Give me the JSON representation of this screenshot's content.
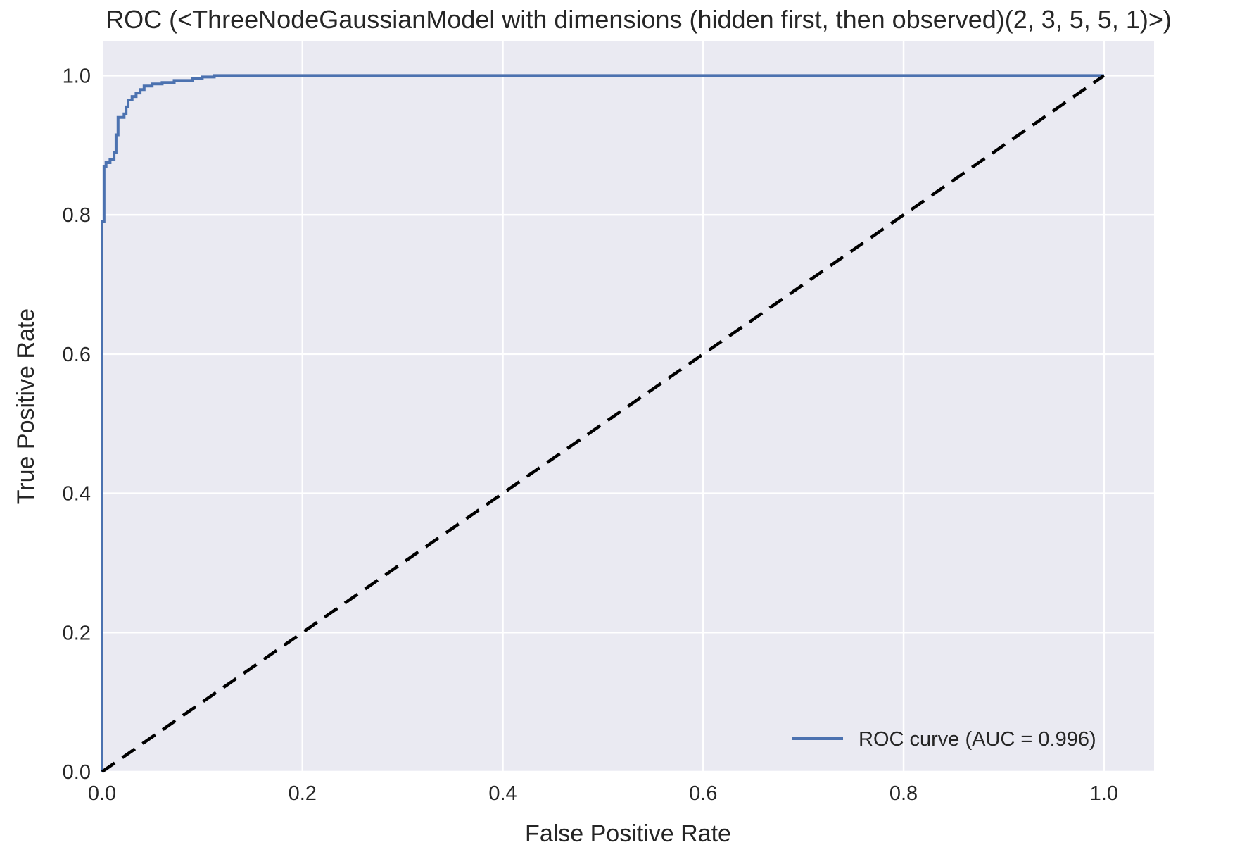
{
  "chart_data": {
    "type": "line",
    "title": "ROC (<ThreeNodeGaussianModel with dimensions (hidden first, then observed)(2, 3, 5, 5, 1)>)",
    "xlabel": "False Positive Rate",
    "ylabel": "True Positive Rate",
    "xlim": [
      0.0,
      1.05
    ],
    "ylim": [
      0.0,
      1.05
    ],
    "xticks": [
      0.0,
      0.2,
      0.4,
      0.6,
      0.8,
      1.0
    ],
    "xtick_labels": [
      "0.0",
      "0.2",
      "0.4",
      "0.6",
      "0.8",
      "1.0"
    ],
    "yticks": [
      0.0,
      0.2,
      0.4,
      0.6,
      0.8,
      1.0
    ],
    "ytick_labels": [
      "0.0",
      "0.2",
      "0.4",
      "0.6",
      "0.8",
      "1.0"
    ],
    "grid": true,
    "legend_position": "lower-right",
    "colors": {
      "background": "#EAEAF2",
      "grid": "#FFFFFF",
      "roc": "#4C72B0",
      "chance": "#000000"
    },
    "series": [
      {
        "name": "ROC curve (AUC = 0.996)",
        "style": "solid",
        "x": [
          0.0,
          0.0,
          0.002,
          0.002,
          0.004,
          0.004,
          0.008,
          0.008,
          0.012,
          0.012,
          0.014,
          0.014,
          0.016,
          0.016,
          0.022,
          0.022,
          0.024,
          0.024,
          0.026,
          0.026,
          0.03,
          0.03,
          0.034,
          0.034,
          0.038,
          0.038,
          0.042,
          0.042,
          0.05,
          0.05,
          0.06,
          0.06,
          0.072,
          0.072,
          0.09,
          0.09,
          0.1,
          0.1,
          0.112,
          0.112,
          1.0
        ],
        "y": [
          0.0,
          0.79,
          0.79,
          0.87,
          0.87,
          0.875,
          0.875,
          0.88,
          0.88,
          0.89,
          0.89,
          0.915,
          0.915,
          0.94,
          0.94,
          0.945,
          0.945,
          0.955,
          0.955,
          0.965,
          0.965,
          0.97,
          0.97,
          0.975,
          0.975,
          0.98,
          0.98,
          0.985,
          0.985,
          0.988,
          0.988,
          0.99,
          0.99,
          0.993,
          0.993,
          0.996,
          0.996,
          0.998,
          0.998,
          1.0,
          1.0
        ]
      },
      {
        "style": "dashed",
        "x": [
          0.0,
          1.0
        ],
        "y": [
          0.0,
          1.0
        ]
      }
    ]
  }
}
